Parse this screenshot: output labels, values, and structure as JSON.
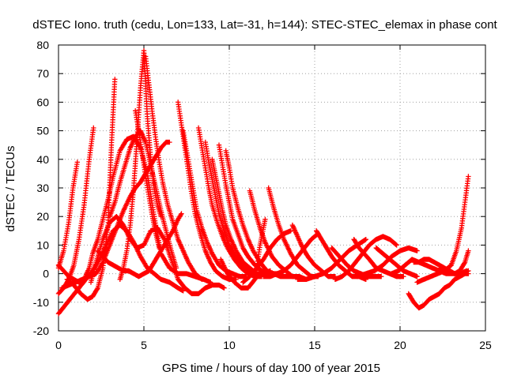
{
  "chart_data": {
    "type": "scatter",
    "title": "dSTEC Iono. truth (cedu, Lon=133, Lat=-31, h=144): STEC-STEC_elemax in phase cont",
    "xlabel": "GPS time / hours of day 100 of year 2015",
    "ylabel": "dSTEC  / TECUs",
    "xlim": [
      0,
      25
    ],
    "ylim": [
      -20,
      80
    ],
    "xticks": [
      0,
      5,
      10,
      15,
      20,
      25
    ],
    "yticks": [
      -20,
      -10,
      0,
      10,
      20,
      30,
      40,
      50,
      60,
      70,
      80
    ],
    "grid": true,
    "marker": "+",
    "color": "#ff0000",
    "series": [
      {
        "x": [
          0.0,
          0.3,
          0.6,
          0.85,
          1.1
        ],
        "y": [
          2,
          8,
          18,
          30,
          39
        ]
      },
      {
        "x": [
          0.0,
          0.3,
          0.6,
          0.9,
          1.2,
          1.5,
          1.8,
          2.0,
          2.3,
          2.6,
          2.9,
          3.2,
          3.6,
          4.0,
          4.4,
          4.8,
          5.2,
          5.6,
          6.0,
          6.5,
          7.0,
          7.5,
          8.0,
          8.5,
          8.9
        ],
        "y": [
          3,
          1,
          -1,
          -2,
          -3,
          -2,
          2,
          7,
          12,
          19,
          26,
          34,
          43,
          47,
          48,
          44,
          35,
          20,
          7,
          2,
          0,
          0,
          -1,
          -2,
          -3
        ]
      },
      {
        "x": [
          0.0,
          0.3,
          0.6,
          0.9,
          1.2,
          1.5,
          1.8,
          2.05
        ],
        "y": [
          -7,
          -5,
          -2,
          3,
          12,
          24,
          40,
          51
        ]
      },
      {
        "x": [
          0.0,
          0.4,
          0.8,
          1.2,
          1.6,
          2.0,
          2.4,
          2.8,
          3.2,
          3.6,
          4.0,
          4.4,
          4.8,
          5.2,
          5.6,
          6.0,
          6.5,
          7.0,
          7.3
        ],
        "y": [
          -14,
          -11,
          -8,
          -5,
          -2,
          1,
          5,
          10,
          15,
          17,
          15,
          11,
          6,
          2,
          0,
          -2,
          -3,
          -5,
          -6
        ]
      },
      {
        "x": [
          0.2,
          0.6,
          1.0,
          1.4,
          1.8,
          2.2,
          2.6,
          3.0,
          3.4,
          3.8,
          4.2,
          4.5,
          4.8,
          5.1,
          5.4,
          5.7,
          6.0,
          6.3,
          6.5
        ],
        "y": [
          -5,
          -4,
          -3,
          -2,
          -1,
          0,
          4,
          10,
          16,
          22,
          27,
          30,
          32,
          35,
          38,
          41,
          44,
          46,
          46
        ]
      },
      {
        "x": [
          0.5,
          0.9,
          1.3,
          1.7,
          2.0,
          2.3,
          2.6,
          2.9,
          3.1,
          3.3
        ],
        "y": [
          -2,
          -4,
          -7,
          -9,
          -8,
          -5,
          2,
          17,
          45,
          68
        ]
      },
      {
        "x": [
          1.9,
          2.2,
          2.6,
          3.0,
          3.4,
          3.8,
          4.2,
          4.6,
          5.0,
          5.4,
          5.8,
          6.2,
          6.6,
          7.0,
          7.4,
          7.8,
          8.2,
          8.6,
          9.0,
          9.4,
          9.7
        ],
        "y": [
          -3,
          4,
          12,
          18,
          20,
          17,
          12,
          9,
          10,
          15,
          16,
          12,
          5,
          -2,
          -5,
          -7,
          -7,
          -5,
          -4,
          -4,
          -5
        ]
      },
      {
        "x": [
          2.3,
          2.6,
          2.9,
          3.2,
          3.5,
          3.8,
          4.1,
          4.4,
          4.7,
          5.0,
          5.3,
          5.6,
          5.9,
          6.3,
          6.7,
          7.0,
          7.2
        ],
        "y": [
          8,
          6,
          4,
          3,
          2,
          1,
          1,
          0,
          -1,
          0,
          1,
          4,
          7,
          11,
          15,
          19,
          21
        ]
      },
      {
        "x": [
          3.6,
          3.8,
          4.0,
          4.2,
          4.4,
          4.6,
          4.8,
          5.0,
          5.2,
          5.4,
          5.6,
          5.8,
          6.0
        ],
        "y": [
          -2,
          2,
          8,
          17,
          30,
          47,
          65,
          78,
          55,
          40,
          30,
          24,
          20
        ]
      },
      {
        "x": [
          3.0,
          3.3,
          3.6,
          3.9,
          4.2,
          4.5,
          4.8,
          5.1,
          5.4,
          5.7,
          6.0,
          6.3,
          6.6,
          6.9
        ],
        "y": [
          20,
          25,
          32,
          38,
          44,
          48,
          50,
          46,
          38,
          30,
          22,
          15,
          8,
          2
        ]
      },
      {
        "x": [
          5.1,
          5.3,
          5.5,
          5.7,
          5.9,
          6.1,
          6.4,
          6.7,
          7.0,
          7.3,
          7.6,
          8.0,
          8.4
        ],
        "y": [
          76,
          66,
          56,
          47,
          39,
          32,
          24,
          18,
          12,
          8,
          4,
          0,
          -2
        ]
      },
      {
        "x": [
          4.5,
          4.7,
          4.9,
          5.1,
          5.3,
          5.5,
          5.7,
          5.9
        ],
        "y": [
          57,
          50,
          42,
          34,
          27,
          20,
          14,
          9
        ]
      },
      {
        "x": [
          7.0,
          7.2,
          7.4,
          7.6,
          7.8,
          8.0,
          8.3,
          8.6,
          8.9,
          9.2,
          9.6,
          10.0,
          10.4
        ],
        "y": [
          60,
          52,
          44,
          36,
          28,
          21,
          14,
          8,
          4,
          1,
          -1,
          -2,
          -2
        ]
      },
      {
        "x": [
          7.3,
          7.5,
          7.7,
          7.9,
          8.1,
          8.4,
          8.7,
          9.0,
          9.4,
          9.8,
          10.2,
          10.6,
          11.0
        ],
        "y": [
          50,
          43,
          36,
          29,
          22,
          16,
          11,
          7,
          3,
          1,
          0,
          -1,
          -1
        ]
      },
      {
        "x": [
          8.2,
          8.4,
          8.6,
          8.8,
          9.0,
          9.3,
          9.6,
          9.9,
          10.3,
          10.7,
          11.1,
          11.5,
          11.9
        ],
        "y": [
          51,
          44,
          37,
          30,
          24,
          18,
          13,
          9,
          5,
          2,
          0,
          -1,
          -1
        ]
      },
      {
        "x": [
          8.6,
          8.8,
          9.0,
          9.2,
          9.4,
          9.7,
          10.0,
          10.4,
          10.8,
          11.2,
          11.6,
          12.0
        ],
        "y": [
          46,
          39,
          33,
          27,
          21,
          15,
          10,
          6,
          3,
          1,
          0,
          0
        ]
      },
      {
        "x": [
          9.0,
          9.2,
          9.4,
          9.6,
          9.8,
          10.1,
          10.4,
          10.8,
          11.2,
          11.6,
          12.0,
          12.4
        ],
        "y": [
          40,
          34,
          28,
          22,
          17,
          12,
          8,
          4,
          2,
          0,
          0,
          1
        ]
      },
      {
        "x": [
          9.4,
          9.6,
          9.8,
          10.0,
          10.2,
          10.5,
          10.8,
          11.1,
          11.5,
          11.9,
          12.3,
          12.7,
          13.0
        ],
        "y": [
          45,
          38,
          31,
          25,
          19,
          14,
          9,
          6,
          3,
          1,
          0,
          0,
          0
        ]
      },
      {
        "x": [
          9.8,
          10.0,
          10.2,
          10.5,
          10.8,
          11.1,
          11.4,
          11.8,
          12.2,
          12.6,
          13.0,
          13.4,
          13.8
        ],
        "y": [
          43,
          37,
          30,
          23,
          17,
          12,
          8,
          4,
          1,
          0,
          -1,
          -1,
          -1
        ]
      },
      {
        "x": [
          9.5,
          9.9,
          10.3,
          10.7,
          11.1,
          11.5,
          11.8,
          12.1
        ],
        "y": [
          5,
          0,
          -3,
          -5,
          -5,
          -2,
          10,
          19
        ]
      },
      {
        "x": [
          11.2,
          11.5,
          11.8,
          12.1,
          12.5,
          12.9,
          13.3,
          13.7,
          14.1,
          14.5
        ],
        "y": [
          29,
          22,
          16,
          11,
          6,
          3,
          1,
          -1,
          -1,
          -2
        ]
      },
      {
        "x": [
          10.8,
          11.2,
          11.6,
          12.0,
          12.4,
          12.8,
          13.2,
          13.6
        ],
        "y": [
          -3,
          -1,
          2,
          5,
          9,
          12,
          14,
          15
        ]
      },
      {
        "x": [
          12.3,
          12.6,
          12.9,
          13.2,
          13.6,
          14.0,
          14.4,
          14.8,
          15.2
        ],
        "y": [
          30,
          23,
          17,
          12,
          7,
          3,
          1,
          -1,
          -1
        ]
      },
      {
        "x": [
          12.0,
          12.4,
          12.8,
          13.2,
          13.6,
          14.0,
          14.4,
          14.8,
          15.2
        ],
        "y": [
          -1,
          -1,
          0,
          1,
          3,
          6,
          9,
          12,
          14
        ]
      },
      {
        "x": [
          13.7,
          14.0,
          14.3,
          14.6,
          15.0,
          15.4,
          15.8,
          16.2
        ],
        "y": [
          17,
          13,
          9,
          6,
          3,
          1,
          -1,
          -1
        ]
      },
      {
        "x": [
          15.1,
          15.4,
          15.7,
          16.0,
          16.4,
          16.8,
          17.2,
          17.6,
          18.0
        ],
        "y": [
          15,
          12,
          9,
          6,
          3,
          1,
          -1,
          -1,
          -2
        ]
      },
      {
        "x": [
          14.0,
          14.5,
          15.0,
          15.5,
          16.0,
          16.5,
          17.0,
          17.5,
          18.0
        ],
        "y": [
          -2,
          -2,
          -1,
          0,
          2,
          5,
          8,
          10,
          12
        ]
      },
      {
        "x": [
          16.0,
          16.3,
          16.6,
          16.9,
          17.3,
          17.7,
          18.1,
          18.5,
          18.9
        ],
        "y": [
          9,
          7,
          5,
          3,
          1,
          0,
          -1,
          -1,
          -1
        ]
      },
      {
        "x": [
          16.2,
          16.6,
          17.0,
          17.4,
          17.8,
          18.2,
          18.6,
          19.0,
          19.4,
          19.8
        ],
        "y": [
          -2,
          -1,
          1,
          4,
          7,
          10,
          12,
          13,
          12,
          10
        ]
      },
      {
        "x": [
          17.3,
          17.6,
          17.9,
          18.2,
          18.6,
          19.0,
          19.4,
          19.8,
          20.2
        ],
        "y": [
          12,
          9,
          7,
          5,
          2,
          1,
          0,
          -1,
          -1
        ]
      },
      {
        "x": [
          17.5,
          18.0,
          18.5,
          19.0,
          19.5,
          20.0,
          20.5,
          21.0
        ],
        "y": [
          -1,
          0,
          1,
          3,
          6,
          8,
          9,
          8
        ]
      },
      {
        "x": [
          18.6,
          19.0,
          19.4,
          19.8,
          20.2,
          20.6,
          21.0
        ],
        "y": [
          9,
          7,
          5,
          3,
          1,
          0,
          -1
        ]
      },
      {
        "x": [
          19.5,
          19.9,
          20.3,
          20.7,
          21.1,
          21.5,
          21.9,
          22.3,
          22.7,
          23.1,
          23.5,
          23.9
        ],
        "y": [
          0,
          1,
          3,
          5,
          4,
          3,
          2,
          1,
          0,
          0,
          0,
          1
        ]
      },
      {
        "x": [
          20.5,
          20.8,
          21.1,
          21.4,
          21.7,
          22.0,
          22.3,
          22.6,
          22.9,
          23.2,
          23.5,
          23.8,
          24.0
        ],
        "y": [
          -7,
          -10,
          -12,
          -11,
          -9,
          -8,
          -7,
          -5,
          -4,
          -2,
          -1,
          0,
          0
        ]
      },
      {
        "x": [
          20.8,
          21.1,
          21.4,
          21.7,
          22.0,
          22.3,
          22.6,
          22.9,
          23.2,
          23.5,
          23.8,
          24.0
        ],
        "y": [
          4,
          4,
          5,
          5,
          4,
          3,
          2,
          1,
          0,
          1,
          4,
          8
        ]
      },
      {
        "x": [
          21.0,
          21.4,
          21.8,
          22.2,
          22.6,
          23.0,
          23.3,
          23.6,
          23.8,
          24.0
        ],
        "y": [
          -3,
          -2,
          -1,
          0,
          1,
          3,
          8,
          16,
          25,
          34
        ]
      },
      {
        "x": [
          22.4,
          22.8,
          23.2,
          23.6,
          24.0
        ],
        "y": [
          2,
          1,
          0,
          0,
          1
        ]
      }
    ]
  }
}
